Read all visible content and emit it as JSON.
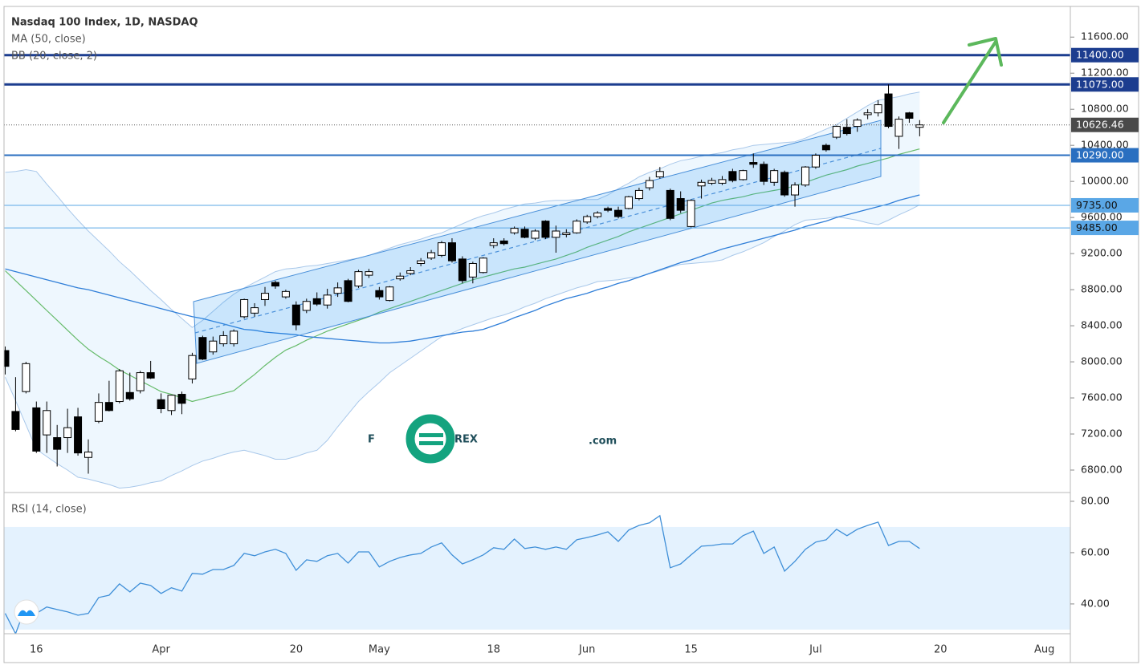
{
  "chart_data": [
    {
      "type": "candlestick",
      "title": "Nasdaq 100 Index, 1D, NASDAQ",
      "categories": [
        null,
        null,
        null,
        "16",
        null,
        null,
        null,
        null,
        null,
        null,
        null,
        null,
        null,
        null,
        null,
        "Apr",
        null,
        null,
        null,
        null,
        null,
        null,
        null,
        null,
        null,
        null,
        null,
        null,
        "20",
        null,
        null,
        null,
        null,
        null,
        null,
        null,
        "May",
        null,
        null,
        null,
        null,
        null,
        null,
        null,
        null,
        null,
        null,
        "18",
        null,
        null,
        null,
        null,
        null,
        null,
        null,
        null,
        "Jun",
        null,
        null,
        null,
        null,
        null,
        null,
        null,
        null,
        null,
        "15",
        null,
        null,
        null,
        null,
        null,
        null,
        null,
        null,
        null,
        null,
        null,
        "Jul",
        null,
        null,
        null,
        null,
        null,
        null,
        null,
        null,
        null,
        null,
        null,
        "20",
        null,
        null,
        null,
        null,
        null,
        null,
        null,
        null,
        null,
        "Aug",
        null,
        null
      ],
      "open": [
        8125,
        7450,
        7670,
        7490,
        7190,
        7160,
        7160,
        7390,
        6940,
        7340,
        7550,
        7560,
        7660,
        7680,
        7880,
        7580,
        7460,
        7640,
        7810,
        8270,
        8110,
        8200,
        8200,
        8500,
        8540,
        8690,
        8880,
        8720,
        8630,
        8570,
        8700,
        8630,
        8760,
        8900,
        8840,
        8960,
        8790,
        8680,
        8920,
        8980,
        9090,
        9150,
        9180,
        9320,
        9140,
        8940,
        8990,
        9290,
        9340,
        9430,
        9470,
        9370,
        9560,
        9380,
        9410,
        9430,
        9550,
        9610,
        9700,
        9680,
        9700,
        9810,
        9930,
        10050,
        9900,
        9810,
        9500,
        9950,
        9980,
        9980,
        10110,
        10020,
        10210,
        10190,
        9990,
        10100,
        9850,
        9960,
        10160,
        10400,
        10490,
        10600,
        10610,
        10740,
        10760,
        10970,
        10500,
        10760,
        10600,
        null,
        null,
        null,
        null,
        null,
        null,
        null,
        null,
        null,
        null,
        null,
        null,
        null,
        null
      ],
      "high": [
        8170,
        7830,
        8000,
        7560,
        7560,
        7300,
        7480,
        7490,
        7140,
        7650,
        7790,
        7920,
        7880,
        7900,
        8010,
        7650,
        7630,
        7670,
        8100,
        8290,
        8280,
        8340,
        8360,
        8700,
        8650,
        8830,
        8900,
        8800,
        8670,
        8700,
        8770,
        8810,
        8880,
        8920,
        9020,
        9030,
        8830,
        8840,
        8990,
        9050,
        9150,
        9240,
        9340,
        9370,
        9170,
        9110,
        9160,
        9370,
        9370,
        9500,
        9500,
        9470,
        9570,
        9510,
        9470,
        9580,
        9630,
        9670,
        9720,
        9720,
        9840,
        9930,
        10050,
        10160,
        9920,
        9890,
        9800,
        10020,
        10040,
        10060,
        10140,
        10130,
        10310,
        10220,
        10140,
        10120,
        9990,
        10170,
        10310,
        10420,
        10620,
        10690,
        10700,
        10800,
        10900,
        11075,
        10720,
        10770,
        10680,
        null,
        null,
        null,
        null,
        null,
        null,
        null,
        null,
        null,
        null,
        null,
        null,
        null,
        null
      ],
      "low": [
        7860,
        7230,
        7650,
        6990,
        6990,
        6840,
        6990,
        6960,
        6760,
        7320,
        7450,
        7540,
        7570,
        7650,
        7810,
        7430,
        7410,
        7420,
        7760,
        8020,
        8080,
        8170,
        8170,
        8480,
        8500,
        8620,
        8810,
        8700,
        8350,
        8540,
        8620,
        8590,
        8720,
        8660,
        8820,
        8930,
        8690,
        8670,
        8900,
        8960,
        9060,
        9130,
        9160,
        9100,
        8870,
        8870,
        8980,
        9260,
        9290,
        9410,
        9370,
        9350,
        9360,
        9210,
        9380,
        9420,
        9530,
        9590,
        9660,
        9590,
        9690,
        9790,
        9900,
        10030,
        9570,
        9650,
        9490,
        9810,
        9960,
        9960,
        9990,
        10010,
        10150,
        9960,
        9950,
        9830,
        9720,
        9940,
        10140,
        10330,
        10470,
        10510,
        10550,
        10690,
        10720,
        10590,
        10360,
        10650,
        10500,
        null,
        null,
        null,
        null,
        null,
        null,
        null,
        null,
        null,
        null,
        null,
        null,
        null,
        null
      ],
      "close": [
        7950,
        7250,
        7980,
        7010,
        7460,
        7030,
        7270,
        6990,
        7000,
        7550,
        7460,
        7900,
        7590,
        7880,
        7820,
        7480,
        7630,
        7540,
        8070,
        8030,
        8230,
        8290,
        8340,
        8690,
        8600,
        8760,
        8840,
        8780,
        8410,
        8670,
        8640,
        8740,
        8820,
        8670,
        9000,
        9000,
        8720,
        8830,
        8950,
        9010,
        9120,
        9210,
        9320,
        9120,
        8900,
        9090,
        9150,
        9320,
        9310,
        9480,
        9380,
        9450,
        9380,
        9450,
        9430,
        9560,
        9610,
        9650,
        9680,
        9610,
        9830,
        9900,
        10010,
        10110,
        9590,
        9680,
        9790,
        9990,
        10010,
        10020,
        10010,
        10120,
        10190,
        10000,
        10120,
        9850,
        9960,
        10160,
        10290,
        10350,
        10610,
        10530,
        10680,
        10760,
        10850,
        10610,
        10690,
        10700,
        10626.46,
        null,
        null,
        null,
        null,
        null,
        null,
        null,
        null,
        null,
        null,
        null,
        null,
        null,
        null
      ],
      "up_color": "#ffffff",
      "down_color": "#000000",
      "ylim": [
        6560,
        11940
      ],
      "yticks": [
        {
          "value": 6800,
          "label": "6800.00"
        },
        {
          "value": 7200,
          "label": "7200.00"
        },
        {
          "value": 7600,
          "label": "7600.00"
        },
        {
          "value": 8000,
          "label": "8000.00"
        },
        {
          "value": 8400,
          "label": "8400.00"
        },
        {
          "value": 8800,
          "label": "8800.00"
        },
        {
          "value": 9200,
          "label": "9200.00"
        },
        {
          "value": 9600,
          "label": "9600.00"
        },
        {
          "value": 10000,
          "label": "10000.00"
        },
        {
          "value": 10400,
          "label": "10400.00"
        },
        {
          "value": 10800,
          "label": "10800.00"
        },
        {
          "value": 11200,
          "label": "11200.00"
        },
        {
          "value": 11600,
          "label": "11600.00"
        }
      ],
      "grid": false,
      "levels": [
        {
          "value": 11400,
          "label": "11400.00",
          "color": "#1c3d8f",
          "style": "heavy"
        },
        {
          "value": 11075,
          "label": "11075.00",
          "color": "#1c3d8f",
          "style": "heavy"
        },
        {
          "value": 10290,
          "label": "10290.00",
          "color": "#2a6fc0",
          "style": "medium"
        },
        {
          "value": 9735,
          "label": "9735.00",
          "color": "#5aa7e6",
          "style": "light"
        },
        {
          "value": 9485,
          "label": "9485.00",
          "color": "#5aa7e6",
          "style": "light"
        }
      ],
      "last_price_color": "#4a4a4a",
      "indicators": [
        {
          "name": "MA (50, close)",
          "color": "#2f7ed8",
          "values": [
            9030,
            9000,
            8970,
            8940,
            8910,
            8880,
            8850,
            8820,
            8800,
            8770,
            8740,
            8710,
            8680,
            8650,
            8620,
            8590,
            8560,
            8530,
            8500,
            8480,
            8450,
            8420,
            8390,
            8360,
            8350,
            8330,
            8320,
            8310,
            8300,
            8280,
            8270,
            8260,
            8250,
            8240,
            8230,
            8220,
            8210,
            8210,
            8220,
            8230,
            8250,
            8270,
            8290,
            8310,
            8330,
            8340,
            8360,
            8400,
            8440,
            8490,
            8530,
            8570,
            8620,
            8660,
            8700,
            8730,
            8760,
            8800,
            8830,
            8870,
            8900,
            8940,
            8980,
            9020,
            9060,
            9100,
            9130,
            9170,
            9210,
            9250,
            9280,
            9310,
            9340,
            9370,
            9400,
            9430,
            9460,
            9500,
            9530,
            9560,
            9600,
            9630,
            9660,
            9690,
            9720,
            9750,
            9790,
            9820,
            9850,
            null,
            null,
            null,
            null,
            null,
            null,
            null,
            null,
            null,
            null,
            null,
            null,
            null,
            null
          ]
        },
        {
          "name": "BB (20, close, 2)",
          "color": "#66bb6a",
          "band_color": "#2196f3",
          "band_line_color": "#a9c8ea",
          "basis": [
            9010,
            8900,
            8790,
            8680,
            8570,
            8460,
            8350,
            8240,
            8140,
            8060,
            7990,
            7910,
            7850,
            7790,
            7730,
            7670,
            7640,
            7600,
            7560,
            7590,
            7620,
            7650,
            7680,
            7770,
            7860,
            7960,
            8050,
            8130,
            8180,
            8240,
            8290,
            8340,
            8380,
            8420,
            8460,
            8500,
            8550,
            8590,
            8630,
            8670,
            8710,
            8750,
            8790,
            8830,
            8870,
            8910,
            8940,
            8970,
            9000,
            9030,
            9050,
            9080,
            9110,
            9140,
            9180,
            9220,
            9270,
            9310,
            9350,
            9390,
            9440,
            9480,
            9520,
            9560,
            9600,
            9640,
            9680,
            9720,
            9760,
            9790,
            9810,
            9830,
            9860,
            9880,
            9900,
            9920,
            9950,
            9990,
            10030,
            10070,
            10100,
            10130,
            10170,
            10200,
            10230,
            10260,
            10300,
            10330,
            10360,
            null,
            null,
            null,
            null,
            null,
            null,
            null,
            null,
            null,
            null,
            null,
            null,
            null,
            null
          ],
          "upper": [
            10100,
            10110,
            10130,
            10110,
            9970,
            9840,
            9700,
            9570,
            9450,
            9340,
            9230,
            9110,
            9010,
            8900,
            8790,
            8690,
            8580,
            8480,
            8380,
            8460,
            8560,
            8660,
            8750,
            8820,
            8880,
            8940,
            9000,
            9030,
            9040,
            9060,
            9070,
            9090,
            9110,
            9130,
            9150,
            9180,
            9220,
            9260,
            9300,
            9330,
            9360,
            9400,
            9430,
            9480,
            9530,
            9580,
            9620,
            9650,
            9690,
            9720,
            9750,
            9760,
            9780,
            9790,
            9790,
            9800,
            9800,
            9800,
            9850,
            9920,
            9980,
            10050,
            10100,
            10140,
            10190,
            10230,
            10250,
            10280,
            10300,
            10320,
            10350,
            10370,
            10400,
            10410,
            10420,
            10430,
            10440,
            10480,
            10530,
            10580,
            10630,
            10700,
            10770,
            10840,
            10900,
            10920,
            10940,
            10970,
            10990,
            null,
            null,
            null,
            null,
            null,
            null,
            null,
            null,
            null,
            null,
            null,
            null,
            null,
            null
          ],
          "lower": [
            7830,
            7570,
            7300,
            7030,
            6950,
            6870,
            6800,
            6720,
            6700,
            6670,
            6640,
            6600,
            6610,
            6630,
            6660,
            6680,
            6740,
            6790,
            6850,
            6900,
            6930,
            6970,
            7000,
            7020,
            6990,
            6960,
            6920,
            6920,
            6950,
            6990,
            7020,
            7130,
            7280,
            7420,
            7560,
            7670,
            7770,
            7880,
            7960,
            8040,
            8120,
            8200,
            8280,
            8320,
            8370,
            8410,
            8450,
            8490,
            8520,
            8560,
            8610,
            8650,
            8700,
            8740,
            8780,
            8820,
            8850,
            8890,
            8900,
            8910,
            8930,
            8940,
            8980,
            9010,
            9050,
            9080,
            9090,
            9100,
            9110,
            9130,
            9180,
            9220,
            9270,
            9320,
            9390,
            9450,
            9520,
            9570,
            9580,
            9590,
            9610,
            9590,
            9570,
            9540,
            9520,
            9570,
            9630,
            9680,
            9740,
            null,
            null,
            null,
            null,
            null,
            null,
            null,
            null,
            null,
            null,
            null,
            null,
            null,
            null
          ]
        }
      ],
      "watermark": {
        "left": "F",
        "right": "REX",
        "suffix": ".com"
      }
    },
    {
      "type": "line",
      "title": "RSI (14, close)",
      "color": "#3f8fd8",
      "band": [
        30,
        70
      ],
      "band_color": "#2196f3",
      "values": [
        36.3,
        28.4,
        39.4,
        36.3,
        38.8,
        37.8,
        36.9,
        35.6,
        36.3,
        42.5,
        43.4,
        47.8,
        44.7,
        48.1,
        47.2,
        44.1,
        46.3,
        45.0,
        51.9,
        51.6,
        53.4,
        53.4,
        55.0,
        59.7,
        58.8,
        60.3,
        61.3,
        59.7,
        53.1,
        57.2,
        56.6,
        58.8,
        59.7,
        55.9,
        60.3,
        60.3,
        54.4,
        56.6,
        58.1,
        59.1,
        59.7,
        62.2,
        63.8,
        59.1,
        55.6,
        57.2,
        59.1,
        61.9,
        61.3,
        65.3,
        61.6,
        62.2,
        61.3,
        62.2,
        61.3,
        65.0,
        65.9,
        66.9,
        68.1,
        64.4,
        68.8,
        70.6,
        71.6,
        74.4,
        54.1,
        55.6,
        59.1,
        62.5,
        62.8,
        63.4,
        63.4,
        66.6,
        68.4,
        59.7,
        62.2,
        52.8,
        56.6,
        61.3,
        64.1,
        65.0,
        69.1,
        66.6,
        69.1,
        70.6,
        71.9,
        62.8,
        64.4,
        64.4,
        61.6,
        null,
        null,
        null,
        null,
        null,
        null,
        null,
        null,
        null,
        null,
        null,
        null,
        null,
        null
      ],
      "ylim": [
        28.4,
        82.8
      ],
      "yticks": [
        {
          "value": 40,
          "label": "40.00"
        },
        {
          "value": 60,
          "label": "60.00"
        },
        {
          "value": 80,
          "label": "80.00"
        }
      ]
    }
  ]
}
